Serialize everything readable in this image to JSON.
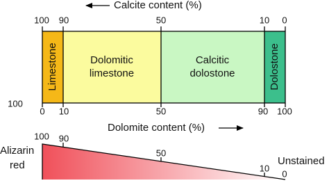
{
  "calcite_axis": {
    "label": "Calcite content (%)",
    "ticks": [
      "100",
      "90",
      "50",
      "10",
      "0"
    ]
  },
  "rocks": [
    {
      "lines": [
        "Limestone"
      ]
    },
    {
      "lines": [
        "Dolomitic",
        "limestone"
      ]
    },
    {
      "lines": [
        "Calcitic",
        "dolostone"
      ]
    },
    {
      "lines": [
        "Dolostone"
      ]
    }
  ],
  "side_label": "100",
  "dolomite_axis": {
    "label": "Dolomite content (%)",
    "ticks": [
      "0",
      "10",
      "50",
      "90",
      "100"
    ]
  },
  "alizarin": {
    "label": [
      "Alizarin",
      "red"
    ],
    "end_label": "Unstained",
    "ticks": [
      "100",
      "90",
      "50",
      "10",
      "0"
    ]
  }
}
